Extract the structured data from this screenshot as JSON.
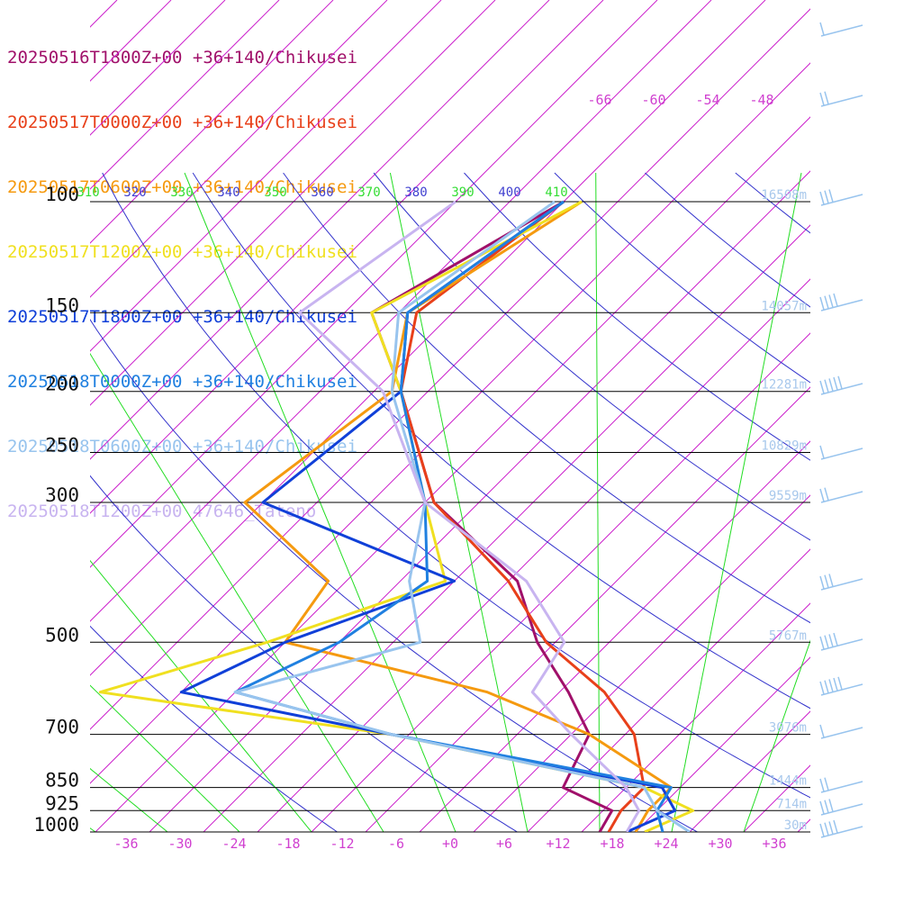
{
  "legend": [
    {
      "text": "20250516T1800Z+00 +36+140/Chikusei",
      "color": "#a0106a"
    },
    {
      "text": "20250517T0000Z+00 +36+140/Chikusei",
      "color": "#e8401a"
    },
    {
      "text": "20250517T0600Z+00 +36+140/Chikusei",
      "color": "#f59a10"
    },
    {
      "text": "20250517T1200Z+00 +36+140/Chikusei",
      "color": "#f0e020"
    },
    {
      "text": "20250517T1800Z+00 +36+140/Chikusei",
      "color": "#1040d8"
    },
    {
      "text": "20250518T0000Z+00 +36+140/Chikusei",
      "color": "#2080e0"
    },
    {
      "text": "20250518T0600Z+00 +36+140/Chikusei",
      "color": "#98c4ee"
    },
    {
      "text": "20250518T1200Z+00 47646_Tateno",
      "color": "#c8b4f0"
    }
  ],
  "chart_data": {
    "type": "line",
    "chart_kind": "skew-T log-p",
    "y_axis": "pressure (hPa)",
    "x_axis": "temperature (°C), skewed",
    "pressure_levels": [
      100,
      150,
      200,
      250,
      300,
      500,
      700,
      850,
      925,
      1000
    ],
    "pressure_labels": [
      "100",
      "150",
      "200",
      "250",
      "300",
      "500",
      "700",
      "850",
      "925",
      "1000"
    ],
    "temperature_ticks": [
      -36,
      -30,
      -24,
      -18,
      -12,
      -6,
      0,
      6,
      12,
      18,
      24,
      30,
      36
    ],
    "temperature_labels": [
      "-36",
      "-30",
      "-24",
      "-18",
      "-12",
      "-6",
      "+0",
      "+6",
      "+12",
      "+18",
      "+24",
      "+30",
      "+36"
    ],
    "upper_temperature_labels": [
      "-66",
      "-60",
      "-54",
      "-48"
    ],
    "theta_labels": [
      {
        "text": "310",
        "color": "#33dd33"
      },
      {
        "text": "320",
        "color": "#4040d0"
      },
      {
        "text": "330",
        "color": "#33dd33"
      },
      {
        "text": "340",
        "color": "#4040d0"
      },
      {
        "text": "350",
        "color": "#33dd33"
      },
      {
        "text": "360",
        "color": "#4040d0"
      },
      {
        "text": "370",
        "color": "#33dd33"
      },
      {
        "text": "380",
        "color": "#4040d0"
      },
      {
        "text": "390",
        "color": "#33dd33"
      },
      {
        "text": "400",
        "color": "#4040d0"
      },
      {
        "text": "410",
        "color": "#33dd33"
      }
    ],
    "height_labels": [
      "16508m",
      "14057m",
      "12281m",
      "10829m",
      "9559m",
      "5767m",
      "3076m",
      "1444m",
      "714m",
      "30m"
    ],
    "colors": {
      "isotherm": "#cc22cc",
      "dry_adiabat": "#3333cc",
      "moist_adiabat": "#22dd22",
      "isobar": "#000000",
      "wind_barb": "#98c4ee"
    },
    "series": [
      {
        "color": "#a0106a",
        "points": [
          [
            100,
            -58
          ],
          [
            150,
            -67
          ],
          [
            200,
            -55
          ],
          [
            300,
            -39
          ],
          [
            400,
            -21
          ],
          [
            500,
            -12
          ],
          [
            600,
            -3
          ],
          [
            700,
            4
          ],
          [
            850,
            7
          ],
          [
            925,
            15
          ],
          [
            1000,
            16
          ]
        ]
      },
      {
        "color": "#e8401a",
        "points": [
          [
            100,
            -58
          ],
          [
            150,
            -62
          ],
          [
            200,
            -55
          ],
          [
            300,
            -39
          ],
          [
            400,
            -22
          ],
          [
            500,
            -11
          ],
          [
            600,
            1
          ],
          [
            700,
            9
          ],
          [
            850,
            16
          ],
          [
            925,
            16
          ],
          [
            1000,
            17
          ]
        ]
      },
      {
        "color": "#f59a10",
        "points": [
          [
            100,
            -56
          ],
          [
            150,
            -63
          ],
          [
            200,
            -56
          ],
          [
            300,
            -60
          ],
          [
            400,
            -42
          ],
          [
            500,
            -40
          ],
          [
            600,
            -12
          ],
          [
            700,
            4
          ],
          [
            850,
            19
          ],
          [
            925,
            19
          ],
          [
            1000,
            20
          ]
        ]
      },
      {
        "color": "#f0e020",
        "points": [
          [
            100,
            -56
          ],
          [
            150,
            -67
          ],
          [
            200,
            -55
          ],
          [
            300,
            -40
          ],
          [
            400,
            -29
          ],
          [
            500,
            -42
          ],
          [
            600,
            -55
          ],
          [
            700,
            -18
          ],
          [
            850,
            16
          ],
          [
            925,
            24
          ],
          [
            1000,
            21
          ]
        ]
      },
      {
        "color": "#1040d8",
        "points": [
          [
            100,
            -58
          ],
          [
            150,
            -63
          ],
          [
            200,
            -55
          ],
          [
            300,
            -58
          ],
          [
            400,
            -28
          ],
          [
            500,
            -40
          ],
          [
            600,
            -46
          ],
          [
            700,
            -18
          ],
          [
            850,
            18
          ],
          [
            925,
            22
          ],
          [
            1000,
            19
          ]
        ]
      },
      {
        "color": "#2080e0",
        "points": [
          [
            100,
            -58
          ],
          [
            150,
            -63
          ],
          [
            200,
            -55
          ],
          [
            300,
            -40
          ],
          [
            400,
            -31
          ],
          [
            500,
            -34
          ],
          [
            600,
            -40
          ],
          [
            700,
            -18
          ],
          [
            850,
            19
          ],
          [
            925,
            20
          ],
          [
            1000,
            23
          ]
        ]
      },
      {
        "color": "#98c4ee",
        "points": [
          [
            100,
            -59
          ],
          [
            150,
            -64
          ],
          [
            200,
            -56
          ],
          [
            300,
            -40
          ],
          [
            400,
            -33
          ],
          [
            500,
            -25
          ],
          [
            600,
            -40
          ],
          [
            700,
            -18
          ],
          [
            850,
            16
          ],
          [
            925,
            20
          ],
          [
            1000,
            26
          ]
        ]
      },
      {
        "color": "#c8b4f0",
        "points": [
          [
            100,
            -70
          ],
          [
            150,
            -75
          ],
          [
            200,
            -57
          ],
          [
            300,
            -40
          ],
          [
            400,
            -20
          ],
          [
            500,
            -9
          ],
          [
            600,
            -7
          ],
          [
            700,
            2
          ],
          [
            850,
            14
          ],
          [
            925,
            18
          ],
          [
            1000,
            19
          ]
        ]
      }
    ]
  }
}
